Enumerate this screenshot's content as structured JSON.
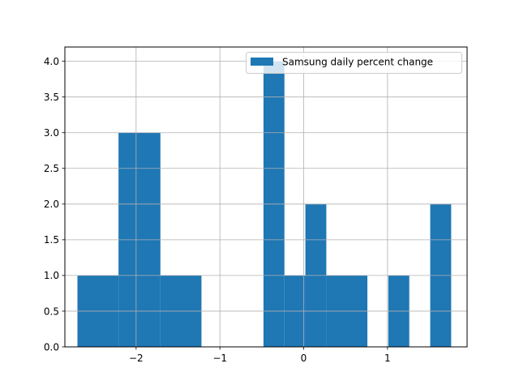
{
  "chart_data": {
    "type": "bar",
    "title": "",
    "xlabel": "",
    "ylabel": "",
    "xlim": [
      -2.85,
      1.95
    ],
    "ylim": [
      0,
      4.2
    ],
    "grid": true,
    "legend_position": "top-right",
    "series": [
      {
        "name": "Samsung daily percent change",
        "color": "#1f77b4",
        "bins": [
          {
            "x0": -2.7,
            "x1": -2.21,
            "count": 1
          },
          {
            "x0": -2.21,
            "x1": -1.71,
            "count": 3
          },
          {
            "x0": -1.71,
            "x1": -1.22,
            "count": 1
          },
          {
            "x0": -1.22,
            "x1": -0.72,
            "count": 0
          },
          {
            "x0": -0.72,
            "x1": -0.48,
            "count": 0
          },
          {
            "x0": -0.48,
            "x1": -0.23,
            "count": 4
          },
          {
            "x0": -0.23,
            "x1": 0.02,
            "count": 1
          },
          {
            "x0": 0.02,
            "x1": 0.27,
            "count": 2
          },
          {
            "x0": 0.27,
            "x1": 0.76,
            "count": 1
          },
          {
            "x0": 0.76,
            "x1": 1.01,
            "count": 0
          },
          {
            "x0": 1.01,
            "x1": 1.26,
            "count": 1
          },
          {
            "x0": 1.26,
            "x1": 1.51,
            "count": 0
          },
          {
            "x0": 1.51,
            "x1": 1.76,
            "count": 2
          }
        ]
      }
    ],
    "x_ticks": [
      {
        "value": -2,
        "label": "−2"
      },
      {
        "value": -1,
        "label": "−1"
      },
      {
        "value": 0,
        "label": "0"
      },
      {
        "value": 1,
        "label": "1"
      }
    ],
    "y_ticks": [
      {
        "value": 0,
        "label": "0.0"
      },
      {
        "value": 0.5,
        "label": "0.5"
      },
      {
        "value": 1,
        "label": "1.0"
      },
      {
        "value": 1.5,
        "label": "1.5"
      },
      {
        "value": 2,
        "label": "2.0"
      },
      {
        "value": 2.5,
        "label": "2.5"
      },
      {
        "value": 3,
        "label": "3.0"
      },
      {
        "value": 3.5,
        "label": "3.5"
      },
      {
        "value": 4,
        "label": "4.0"
      }
    ]
  }
}
